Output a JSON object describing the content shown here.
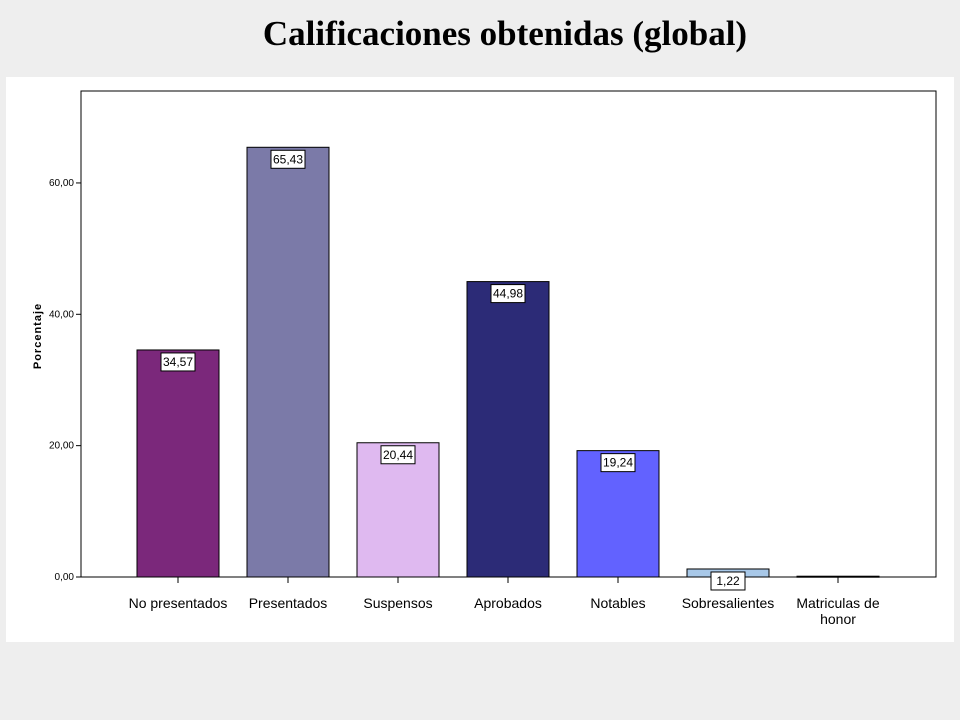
{
  "page": {
    "title": "Calificaciones obtenidas (global)"
  },
  "chart_data": {
    "type": "bar",
    "title": "Calificaciones obtenidas (global)",
    "xlabel": "",
    "ylabel": "Porcentaje",
    "ylim": [
      0,
      74
    ],
    "yticks": [
      0,
      20,
      40,
      60
    ],
    "ytick_labels": [
      "0,00",
      "20,00",
      "40,00",
      "60,00"
    ],
    "categories": [
      [
        "No presentados"
      ],
      [
        "Presentados"
      ],
      [
        "Suspensos"
      ],
      [
        "Aprobados"
      ],
      [
        "Notables"
      ],
      [
        "Sobresalientes"
      ],
      [
        "Matriculas de",
        "honor"
      ]
    ],
    "values": [
      34.57,
      65.43,
      20.44,
      44.98,
      19.24,
      1.22,
      0.12
    ],
    "value_labels": [
      "34,57",
      "65,43",
      "20,44",
      "44,98",
      "19,24",
      "1,22",
      ""
    ],
    "colors": [
      "#7b287b",
      "#7b7aa8",
      "#dfb9f0",
      "#2c2b77",
      "#6262ff",
      "#a8c8e8",
      "#a8c8e8"
    ],
    "grid": false,
    "legend": "none"
  }
}
